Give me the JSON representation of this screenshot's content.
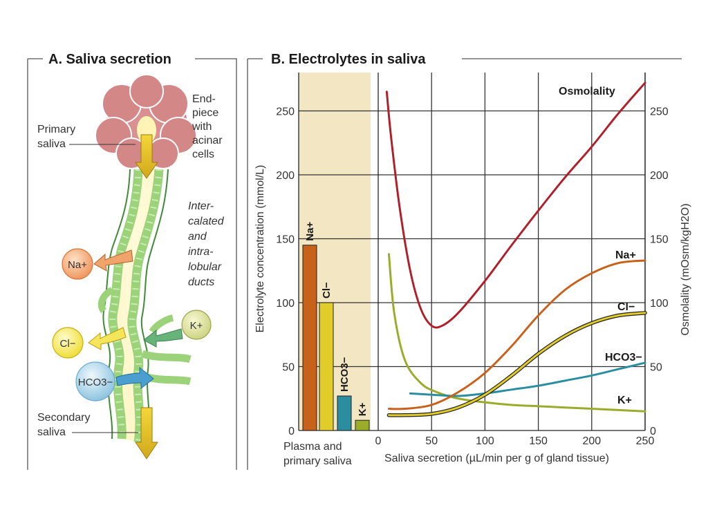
{
  "panel_a": {
    "title": "A.  Saliva secretion",
    "endpiece_label": [
      "End-",
      "piece",
      "with",
      "acinar",
      "cells"
    ],
    "primary_saliva_label": [
      "Primary",
      "saliva"
    ],
    "ducts_label": [
      "Inter-",
      "calated",
      "and",
      "intra-",
      "lobular",
      "ducts"
    ],
    "secondary_saliva_label": [
      "Secondary",
      "saliva"
    ],
    "ions": {
      "na": "Na+",
      "cl": "Cl−",
      "k": "K+",
      "hco3": "HCO3−"
    }
  },
  "panel_b": {
    "title": "B.  Electrolytes in saliva",
    "bar_group_label": [
      "Plasma and",
      "primary saliva"
    ]
  },
  "colors": {
    "na": "#c8611a",
    "cl": "#e2cc2a",
    "hco3": "#2a8ea0",
    "k": "#9aac2a",
    "osmolality": "#b0202a",
    "shade": "#f3e6c2",
    "acinus": "#d99090",
    "duct": "#9cd27a"
  },
  "chart_data": {
    "type": "line",
    "title": "Electrolytes in saliva",
    "xlabel": "Saliva secretion (µL/min per g of gland tissue)",
    "ylabel": "Electrolyte concentration (mmol/L)",
    "y2label": "Osmolality (mOsm/kgH2O)",
    "xlim": [
      0,
      250
    ],
    "ylim": [
      0,
      275
    ],
    "y2lim": [
      0,
      275
    ],
    "xticks": [
      0,
      50,
      100,
      150,
      200,
      250
    ],
    "yticks": [
      0,
      50,
      100,
      150,
      200,
      250
    ],
    "y2ticks": [
      0,
      50,
      100,
      150,
      200,
      250
    ],
    "grid": true,
    "bars": {
      "group_label": "Plasma and primary saliva",
      "items": [
        {
          "name": "Na+",
          "value": 145
        },
        {
          "name": "Cl−",
          "value": 100
        },
        {
          "name": "HCO3−",
          "value": 27
        },
        {
          "name": "K+",
          "value": 8
        }
      ]
    },
    "series": [
      {
        "name": "Osmolality",
        "key": "osmolality",
        "axis": "right",
        "x": [
          8,
          12,
          20,
          30,
          40,
          50,
          60,
          75,
          100,
          125,
          150,
          175,
          200,
          225,
          250
        ],
        "y": [
          265,
          230,
          175,
          125,
          95,
          82,
          82,
          92,
          117,
          145,
          172,
          198,
          222,
          248,
          272
        ]
      },
      {
        "name": "Na+",
        "key": "na",
        "axis": "left",
        "x": [
          10,
          25,
          50,
          75,
          100,
          125,
          150,
          175,
          200,
          225,
          250
        ],
        "y": [
          17,
          17,
          20,
          30,
          45,
          66,
          90,
          110,
          123,
          131,
          133
        ]
      },
      {
        "name": "Cl−",
        "key": "cl",
        "axis": "left",
        "x": [
          10,
          25,
          50,
          75,
          100,
          125,
          150,
          175,
          200,
          225,
          250
        ],
        "y": [
          12,
          12,
          13,
          18,
          28,
          43,
          60,
          74,
          84,
          90,
          92
        ]
      },
      {
        "name": "HCO3−",
        "key": "hco3",
        "axis": "left",
        "x": [
          30,
          50,
          75,
          100,
          125,
          150,
          175,
          200,
          225,
          250
        ],
        "y": [
          29,
          28,
          27,
          29,
          32,
          35,
          39,
          43,
          48,
          53
        ]
      },
      {
        "name": "K+",
        "key": "k",
        "axis": "left",
        "x": [
          10,
          15,
          25,
          40,
          55,
          75,
          100,
          125,
          150,
          175,
          200,
          225,
          250
        ],
        "y": [
          138,
          92,
          55,
          37,
          30,
          25,
          22,
          20,
          19,
          18,
          17,
          16,
          15
        ]
      }
    ]
  }
}
